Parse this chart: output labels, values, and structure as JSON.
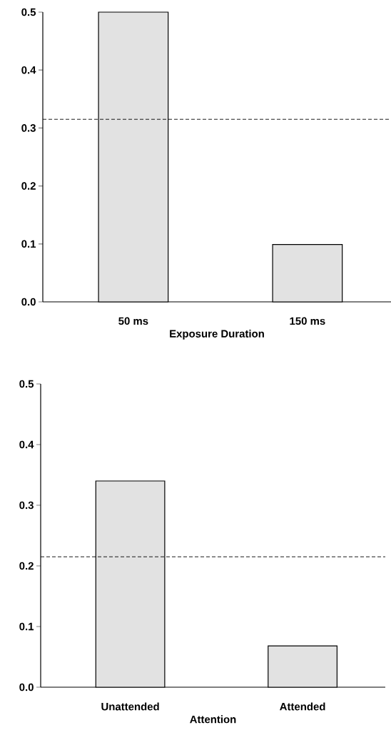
{
  "chart_data": [
    {
      "type": "bar",
      "xlabel": "Exposure Duration",
      "categories": [
        "50 ms",
        "150 ms"
      ],
      "values": [
        0.5,
        0.099
      ],
      "color": "#e2e2e2",
      "ylim": [
        0,
        0.5
      ],
      "yticks": [
        {
          "value": 0,
          "label": "0.0"
        },
        0.1,
        0.2,
        0.3,
        0.4,
        0.5
      ],
      "ref_lines": [
        {
          "axis": "y",
          "value": 0.315,
          "line_style": "dashed"
        }
      ]
    },
    {
      "type": "bar",
      "xlabel": "Attention",
      "categories": [
        "Unattended",
        "Attended"
      ],
      "values": [
        0.34,
        0.068
      ],
      "color": "#e2e2e2",
      "ylim": [
        0,
        0.5
      ],
      "yticks": [
        {
          "value": 0,
          "label": "0.0"
        },
        0.1,
        0.2,
        0.3,
        0.4,
        0.5
      ],
      "ref_lines": [
        {
          "axis": "y",
          "value": 0.215,
          "line_style": "dashed"
        }
      ]
    }
  ]
}
